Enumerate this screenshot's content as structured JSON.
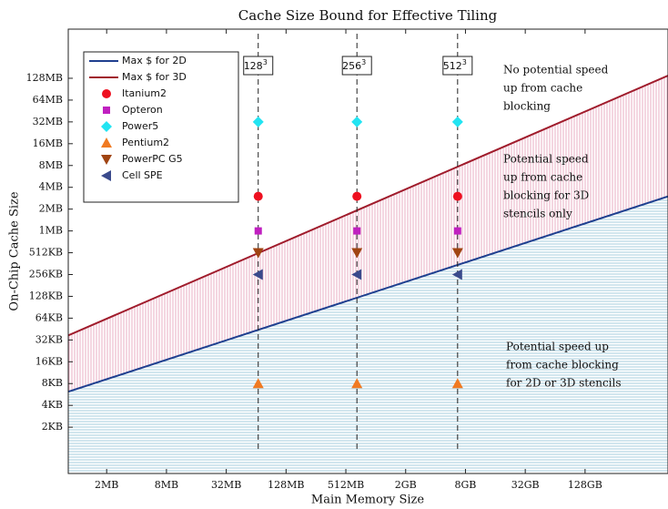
{
  "chart_data": {
    "type": "scatter",
    "title": "Cache Size Bound for Effective Tiling",
    "x_label": "Main Memory Size",
    "y_label": "On-Chip Cache Size",
    "log_x": true,
    "log_y": true,
    "xlim": [
      861000,
      940000000000
    ],
    "ylim": [
      470,
      640000000
    ],
    "xticks": [
      {
        "value": 2097152,
        "label": "2MB"
      },
      {
        "value": 8388608,
        "label": "8MB"
      },
      {
        "value": 33554432,
        "label": "32MB"
      },
      {
        "value": 134217728,
        "label": "128MB"
      },
      {
        "value": 536870912,
        "label": "512MB"
      },
      {
        "value": 2147483648,
        "label": "2GB"
      },
      {
        "value": 8589934592,
        "label": "8GB"
      },
      {
        "value": 34359738368,
        "label": "32GB"
      },
      {
        "value": 137438953472,
        "label": "128GB"
      }
    ],
    "yticks": [
      {
        "value": 2048,
        "label": "2KB"
      },
      {
        "value": 4096,
        "label": "4KB"
      },
      {
        "value": 8192,
        "label": "8KB"
      },
      {
        "value": 16384,
        "label": "16KB"
      },
      {
        "value": 32768,
        "label": "32KB"
      },
      {
        "value": 65536,
        "label": "64KB"
      },
      {
        "value": 131072,
        "label": "128KB"
      },
      {
        "value": 262144,
        "label": "256KB"
      },
      {
        "value": 524288,
        "label": "512KB"
      },
      {
        "value": 1048576,
        "label": "1MB"
      },
      {
        "value": 2097152,
        "label": "2MB"
      },
      {
        "value": 4194304,
        "label": "4MB"
      },
      {
        "value": 8388608,
        "label": "8MB"
      },
      {
        "value": 16777216,
        "label": "16MB"
      },
      {
        "value": 33554432,
        "label": "32MB"
      },
      {
        "value": 67108864,
        "label": "64MB"
      },
      {
        "value": 134217728,
        "label": "128MB"
      }
    ],
    "problem_sizes": [
      {
        "base": "128",
        "exp": "3"
      },
      {
        "base": "256",
        "exp": "3"
      },
      {
        "base": "512",
        "exp": "3"
      }
    ],
    "x": [
      70400000,
      694000000,
      7160000000
    ],
    "lines": [
      {
        "name": "Max $ for 2D",
        "color": "#1f3f8f",
        "fill": "#8fbfd4",
        "hatch": "horizontal",
        "x": [
          861000,
          940000000000
        ],
        "values": [
          6317,
          3140000
        ]
      },
      {
        "name": "Max $ for 3D",
        "color": "#a01c2c",
        "fill": "#e39ab4",
        "hatch": "vertical",
        "x": [
          861000,
          940000000000
        ],
        "values": [
          37900,
          146000000
        ]
      }
    ],
    "series": [
      {
        "name": "Itanium2",
        "color": "#ee1020",
        "marker": "circle",
        "values": [
          3145728,
          3145728,
          3145728
        ]
      },
      {
        "name": "Opteron",
        "color": "#c020c0",
        "marker": "square",
        "values": [
          1048576,
          1048576,
          1048576
        ]
      },
      {
        "name": "Power5",
        "color": "#22e4f2",
        "marker": "diamond",
        "values": [
          33554432,
          33554432,
          33554432
        ]
      },
      {
        "name": "Pentium2",
        "color": "#f07a22",
        "marker": "triangle-up",
        "values": [
          8192,
          8192,
          8192
        ]
      },
      {
        "name": "PowerPC G5",
        "color": "#a04412",
        "marker": "triangle-down",
        "values": [
          524288,
          524288,
          524288
        ]
      },
      {
        "name": "Cell SPE",
        "color": "#3a4a8c",
        "marker": "triangle-left",
        "values": [
          262144,
          262144,
          262144
        ]
      }
    ],
    "annotations": [
      {
        "lines": [
          "No potential speed",
          "up from cache",
          "blocking"
        ]
      },
      {
        "lines": [
          "Potential speed",
          "up from cache",
          "blocking for 3D",
          "stencils only"
        ]
      },
      {
        "lines": [
          "Potential speed up",
          "from cache blocking",
          "for 2D or 3D stencils"
        ]
      }
    ]
  }
}
